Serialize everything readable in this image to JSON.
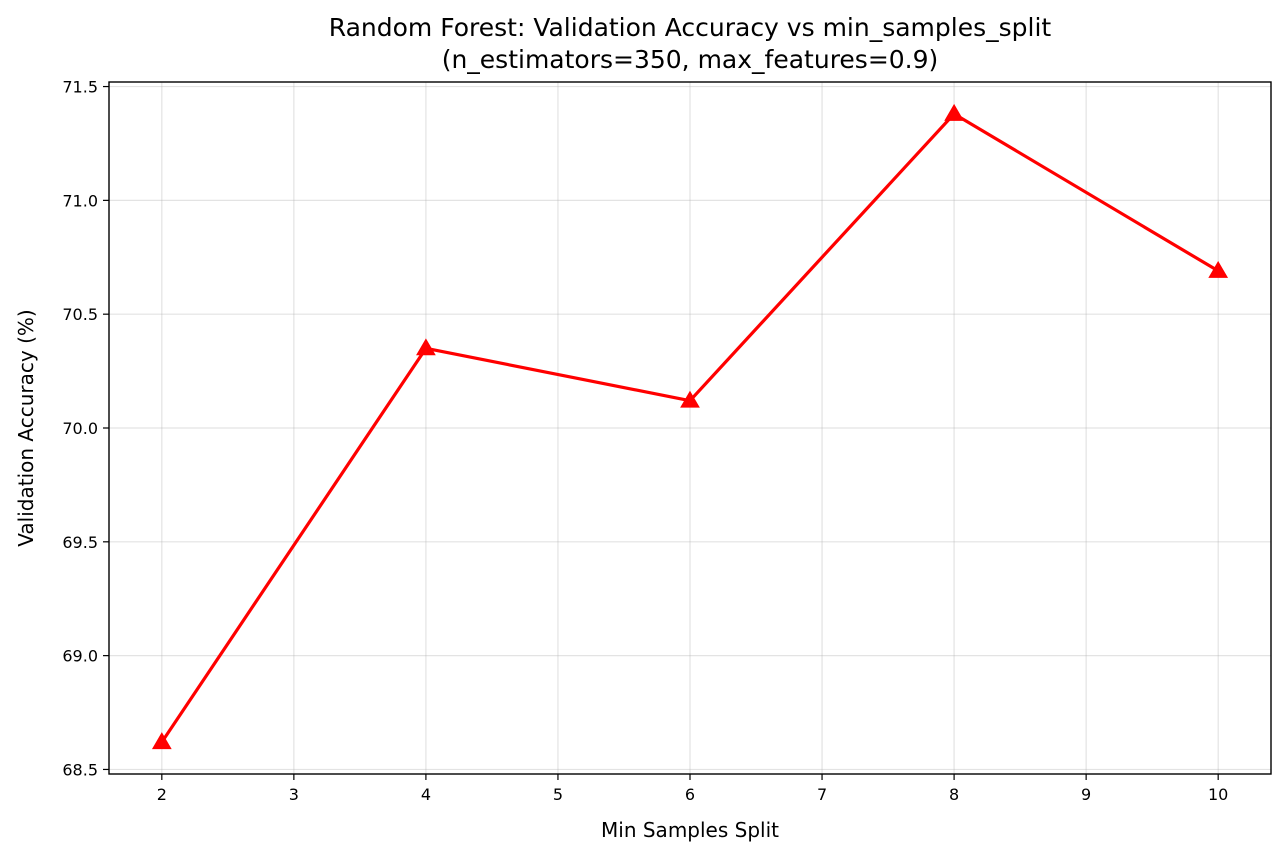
{
  "chart_data": {
    "type": "line",
    "title_line1": "Random Forest: Validation Accuracy vs min_samples_split",
    "title_line2": "(n_estimators=350, max_features=0.9)",
    "xlabel": "Min Samples Split",
    "ylabel": "Validation Accuracy (%)",
    "x": [
      2,
      4,
      6,
      8,
      10
    ],
    "series": [
      {
        "values": [
          68.62,
          70.35,
          70.12,
          71.38,
          70.69
        ],
        "color": "#ff0000",
        "marker": "triangle-up"
      }
    ],
    "xlim": [
      1.6,
      10.4
    ],
    "ylim": [
      68.48,
      71.52
    ],
    "xticks": [
      "2",
      "3",
      "4",
      "5",
      "6",
      "7",
      "8",
      "9",
      "10"
    ],
    "yticks": [
      "68.5",
      "69.0",
      "69.5",
      "70.0",
      "70.5",
      "71.0",
      "71.5"
    ],
    "grid": true,
    "legend": "none"
  }
}
